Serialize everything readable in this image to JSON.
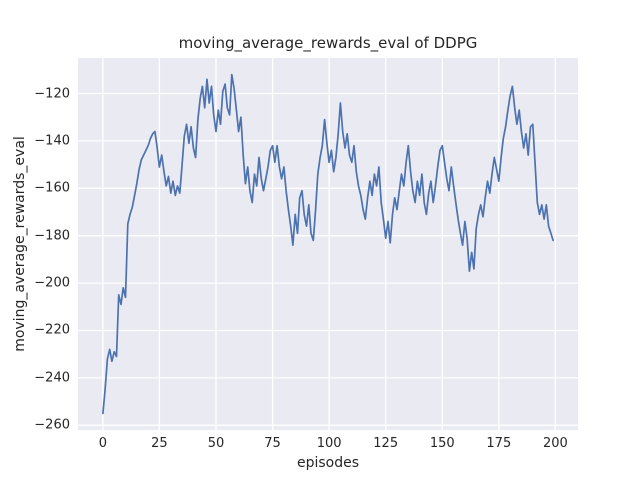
{
  "chart_data": {
    "type": "line",
    "title": "moving_average_rewards_eval of DDPG",
    "xlabel": "episodes",
    "ylabel": "moving_average_rewards_eval",
    "legend": "none",
    "grid": true,
    "plot_bg_color": "#eaeaf2",
    "grid_color": "#ffffff",
    "line_color": "#4c72b0",
    "xlim": [
      -11,
      210
    ],
    "ylim": [
      -262,
      -105
    ],
    "xticks": [
      0,
      25,
      50,
      75,
      100,
      125,
      150,
      175,
      200
    ],
    "xtick_labels": [
      "0",
      "25",
      "50",
      "75",
      "100",
      "125",
      "150",
      "175",
      "200"
    ],
    "yticks": [
      -260,
      -240,
      -220,
      -200,
      -180,
      -160,
      -140,
      -120
    ],
    "ytick_labels": [
      "−260",
      "−240",
      "−220",
      "−200",
      "−180",
      "−160",
      "−140",
      "−120"
    ],
    "x_start": 0,
    "x_step": 1,
    "y": [
      -255,
      -245,
      -232,
      -228,
      -233,
      -229,
      -231,
      -205,
      -209,
      -202,
      -206,
      -175,
      -171,
      -168,
      -163,
      -158,
      -152,
      -148,
      -146,
      -144,
      -142,
      -139,
      -137,
      -136,
      -143,
      -151,
      -146,
      -153,
      -159,
      -155,
      -162,
      -157,
      -163,
      -159,
      -162,
      -150,
      -138,
      -133,
      -141,
      -134,
      -143,
      -147,
      -131,
      -122,
      -117,
      -126,
      -114,
      -124,
      -117,
      -129,
      -136,
      -127,
      -133,
      -119,
      -116,
      -126,
      -129,
      -112,
      -118,
      -127,
      -136,
      -130,
      -146,
      -158,
      -151,
      -161,
      -166,
      -154,
      -159,
      -147,
      -156,
      -161,
      -156,
      -151,
      -144,
      -142,
      -149,
      -142,
      -151,
      -156,
      -151,
      -161,
      -169,
      -176,
      -184,
      -171,
      -179,
      -164,
      -161,
      -171,
      -176,
      -167,
      -179,
      -182,
      -169,
      -154,
      -147,
      -142,
      -131,
      -141,
      -149,
      -144,
      -153,
      -147,
      -137,
      -124,
      -136,
      -143,
      -137,
      -146,
      -149,
      -142,
      -153,
      -159,
      -163,
      -169,
      -173,
      -164,
      -157,
      -163,
      -154,
      -159,
      -151,
      -166,
      -173,
      -181,
      -174,
      -183,
      -171,
      -164,
      -169,
      -161,
      -154,
      -159,
      -149,
      -142,
      -153,
      -161,
      -166,
      -157,
      -163,
      -154,
      -166,
      -171,
      -162,
      -157,
      -166,
      -159,
      -151,
      -144,
      -142,
      -149,
      -156,
      -161,
      -151,
      -159,
      -166,
      -173,
      -179,
      -184,
      -174,
      -181,
      -195,
      -187,
      -194,
      -177,
      -171,
      -167,
      -172,
      -164,
      -157,
      -162,
      -154,
      -147,
      -152,
      -157,
      -147,
      -139,
      -134,
      -127,
      -121,
      -117,
      -126,
      -133,
      -127,
      -136,
      -143,
      -137,
      -146,
      -134,
      -133,
      -149,
      -166,
      -171,
      -167,
      -173,
      -167,
      -176,
      -179,
      -182
    ]
  }
}
